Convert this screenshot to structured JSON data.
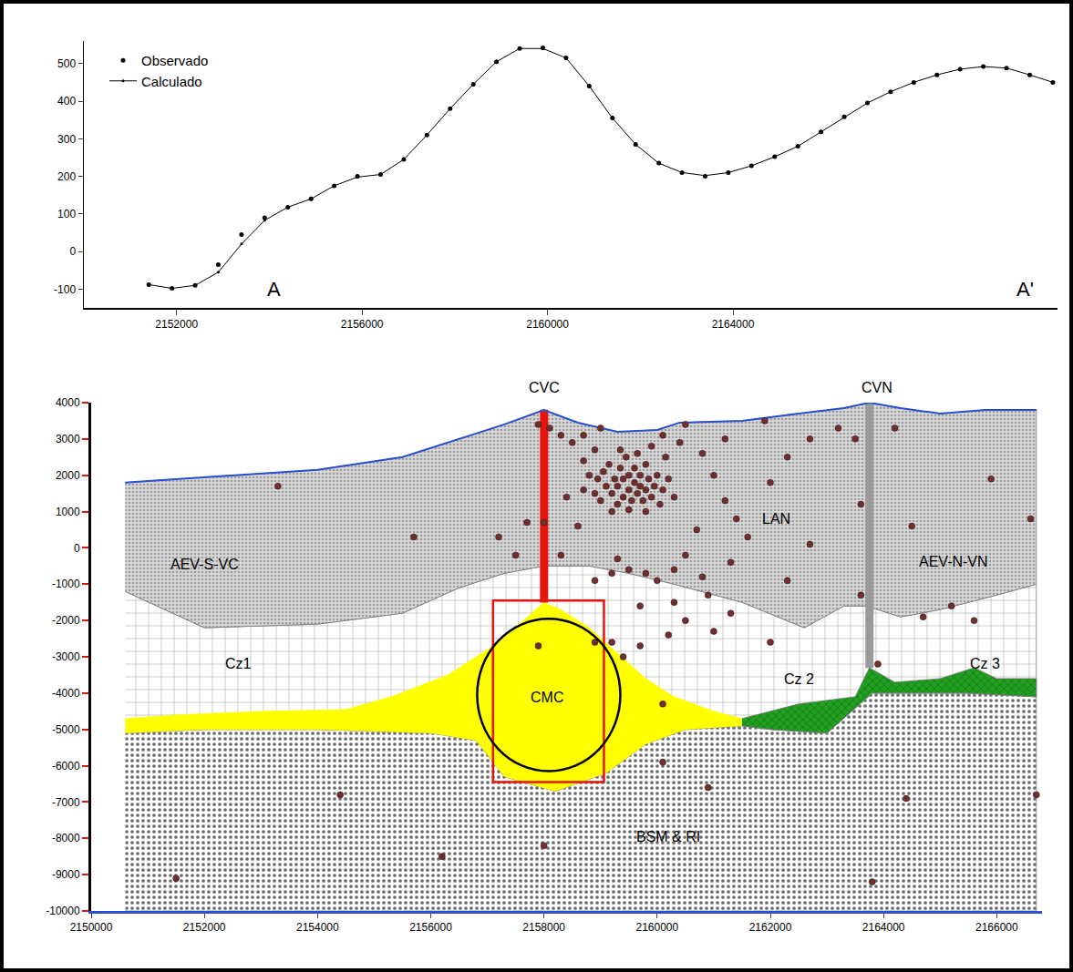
{
  "chart_data": [
    {
      "type": "line",
      "x": [
        2151400,
        2151900,
        2152400,
        2152900,
        2153400,
        2153900,
        2154400,
        2154900,
        2155400,
        2155900,
        2156400,
        2156900,
        2157400,
        2157900,
        2158400,
        2158900,
        2159400,
        2159900,
        2160400,
        2160900,
        2161400,
        2161900,
        2162400,
        2162900,
        2163400,
        2163900,
        2164400,
        2164900,
        2165400,
        2165900,
        2166400,
        2166900,
        2167400,
        2167900,
        2168400,
        2168900,
        2169400,
        2169900,
        2170400,
        2170900
      ],
      "series": [
        {
          "name": "Observado",
          "color": "#000000",
          "marker": "circle",
          "line_style": "none",
          "values": [
            -88,
            -98,
            -90,
            -35,
            45,
            90,
            118,
            140,
            175,
            200,
            205,
            245,
            310,
            380,
            445,
            505,
            540,
            542,
            515,
            440,
            355,
            285,
            235,
            210,
            200,
            210,
            228,
            252,
            280,
            318,
            358,
            395,
            425,
            450,
            470,
            485,
            492,
            488,
            470,
            450
          ]
        },
        {
          "name": "Calculado",
          "color": "#000000",
          "marker": "circle",
          "line_style": "solid",
          "values": [
            -88,
            -98,
            -90,
            -55,
            20,
            83,
            118,
            140,
            175,
            198,
            205,
            245,
            310,
            380,
            445,
            505,
            540,
            540,
            515,
            440,
            355,
            285,
            235,
            210,
            202,
            210,
            228,
            252,
            280,
            318,
            358,
            395,
            425,
            450,
            470,
            485,
            492,
            488,
            470,
            450
          ]
        }
      ],
      "xlim": [
        2150000,
        2171000
      ],
      "ylim": [
        -150,
        560
      ],
      "xticks": [
        2152000,
        2156000,
        2160000,
        2164000
      ],
      "yticks": [
        -100,
        0,
        100,
        200,
        300,
        400,
        500
      ],
      "grid": false,
      "legend": "upper left",
      "annotations": [
        {
          "text": "A",
          "x": 2154100,
          "y": -100
        },
        {
          "text": "A'",
          "x": 2170300,
          "y": -100
        }
      ]
    },
    {
      "type": "section",
      "series": [
        {
          "type": "area",
          "color": "#ffffff",
          "x": [
            2150600,
            2152000,
            2154000,
            2156000,
            2156800,
            2157300,
            2158200,
            2159100,
            2159800,
            2160500,
            2161500,
            2162000,
            2163000,
            2163800,
            2164500,
            2165500,
            2166700,
            2166700,
            2150600
          ],
          "values": [
            -5100,
            -5000,
            -5000,
            -5100,
            -5300,
            -6300,
            -6700,
            -6200,
            -5400,
            -5000,
            -4900,
            -5000,
            -5100,
            -4000,
            -4000,
            -4000,
            -4100,
            -10000,
            -10000
          ]
        },
        {
          "type": "area",
          "color": "#ffffff",
          "x": [
            2150600,
            2152000,
            2154000,
            2155500,
            2156500,
            2157300,
            2158000,
            2158800,
            2159500,
            2160300,
            2161500,
            2162600,
            2163300,
            2163700,
            2164300,
            2165000,
            2166000,
            2166700,
            2166700,
            2165500,
            2164500,
            2163800,
            2163000,
            2162000,
            2161500,
            2160500,
            2159800,
            2159100,
            2158200,
            2157300,
            2156800,
            2156000,
            2154000,
            2152000,
            2150600
          ],
          "values": [
            -1200,
            -2200,
            -2100,
            -1800,
            -1100,
            -700,
            -500,
            -500,
            -700,
            -1000,
            -1500,
            -2200,
            -1600,
            -1600,
            -1900,
            -1700,
            -1300,
            -1000,
            -4100,
            -4000,
            -4000,
            -4000,
            -5100,
            -5000,
            -4900,
            -5000,
            -5400,
            -6200,
            -6700,
            -6300,
            -5300,
            -5100,
            -5000,
            -5000,
            -5100
          ]
        },
        {
          "type": "area",
          "color": "#d9d9d9",
          "x": [
            2150600,
            2152000,
            2154000,
            2155500,
            2156500,
            2157300,
            2158000,
            2158600,
            2159300,
            2160000,
            2160400,
            2161500,
            2162500,
            2163300,
            2163750,
            2164300,
            2165000,
            2165800,
            2166700,
            2166700,
            2166000,
            2165000,
            2164300,
            2163700,
            2163300,
            2162600,
            2161500,
            2160300,
            2159500,
            2158800,
            2158000,
            2157300,
            2156500,
            2155500,
            2154000,
            2152000,
            2150600
          ],
          "values": [
            1800,
            1950,
            2150,
            2500,
            3000,
            3400,
            3800,
            3450,
            3200,
            3250,
            3450,
            3500,
            3700,
            3850,
            4000,
            3850,
            3700,
            3800,
            3800,
            -1000,
            -1300,
            -1700,
            -1900,
            -1600,
            -1600,
            -2200,
            -1500,
            -1000,
            -700,
            -500,
            -500,
            -700,
            -1100,
            -1800,
            -2100,
            -2200,
            -1200
          ]
        },
        {
          "type": "area",
          "color": "#ffff00",
          "x": [
            2150600,
            2151500,
            2153000,
            2154500,
            2155300,
            2156300,
            2157200,
            2157700,
            2158000,
            2158300,
            2158800,
            2159300,
            2159800,
            2160300,
            2161000,
            2161500,
            2161500,
            2160500,
            2159800,
            2159100,
            2158200,
            2157300,
            2156800,
            2156000,
            2154000,
            2152000,
            2150600
          ],
          "values": [
            -4700,
            -4600,
            -4500,
            -4450,
            -4100,
            -3500,
            -2600,
            -1900,
            -1500,
            -1700,
            -2200,
            -2900,
            -3600,
            -4100,
            -4500,
            -4700,
            -4900,
            -5000,
            -5400,
            -6200,
            -6700,
            -6300,
            -5300,
            -5100,
            -5000,
            -5000,
            -5100
          ]
        },
        {
          "type": "area",
          "color": "#22a022",
          "x": [
            2161500,
            2162500,
            2163500,
            2163750,
            2164200,
            2165000,
            2165600,
            2166000,
            2166700,
            2166700,
            2165500,
            2164500,
            2163800,
            2163000,
            2162000,
            2161500
          ],
          "values": [
            -4700,
            -4300,
            -4100,
            -3300,
            -3700,
            -3600,
            -3300,
            -3600,
            -3600,
            -4100,
            -4000,
            -4000,
            -4000,
            -5100,
            -5000,
            -4900
          ]
        },
        {
          "type": "area",
          "color": "#e8140c",
          "x": [
            2157930,
            2158070,
            2158070,
            2157930
          ],
          "values": [
            3800,
            3800,
            -1500,
            -1500
          ]
        },
        {
          "type": "area",
          "color": "#9a9a9a",
          "x": [
            2163680,
            2163820,
            2163820,
            2163680
          ],
          "values": [
            4000,
            4000,
            -3300,
            -3300
          ]
        },
        {
          "type": "line",
          "color": "#2a4fd0",
          "line_style": "solid",
          "x": [
            2150600,
            2152000,
            2154000,
            2155500,
            2156500,
            2157300,
            2158000,
            2158600,
            2159300,
            2160000,
            2160400,
            2161500,
            2162500,
            2163300,
            2163750,
            2164300,
            2165000,
            2165800,
            2166700
          ],
          "values": [
            1800,
            1950,
            2150,
            2500,
            3000,
            3400,
            3800,
            3450,
            3200,
            3250,
            3450,
            3500,
            3700,
            3850,
            4000,
            3850,
            3700,
            3800,
            3800
          ]
        },
        {
          "type": "scatter",
          "color": "#6e2f2f",
          "marker": "circle",
          "x": [
            2158900,
            2158950,
            2159000,
            2159050,
            2159100,
            2159150,
            2159200,
            2159250,
            2159300,
            2159300,
            2159350,
            2159400,
            2159400,
            2159450,
            2159500,
            2159500,
            2159550,
            2159600,
            2159600,
            2159650,
            2159700,
            2159700,
            2159750,
            2159800,
            2159800,
            2159850,
            2159900,
            2159950,
            2160000,
            2160050,
            2160100,
            2159200,
            2159500,
            2159800,
            2160200,
            2160300,
            2158800,
            2158700,
            2160150,
            2159350,
            2159650,
            2159900,
            2160400,
            2160100,
            2159000,
            2158900,
            2158700,
            2160500,
            2160800,
            2161000,
            2161200,
            2161400,
            2161600,
            2160700,
            2160500,
            2160300,
            2159800,
            2159500,
            2159200,
            2160000,
            2160800,
            2161300,
            2162000,
            2162300,
            2162700,
            2163200,
            2161900,
            2161200,
            2160900,
            2161300,
            2161000,
            2160500,
            2160200,
            2159700,
            2159400,
            2159200,
            2159700,
            2160300,
            2162300,
            2162700,
            2163500,
            2163600,
            2163600,
            2163900,
            2164200,
            2164500,
            2164700,
            2165200,
            2165600,
            2165900,
            2166600,
            2162000,
            2157200,
            2157700,
            2158000,
            2157500,
            2158100,
            2158300,
            2158500,
            2157900,
            2158700,
            2158400,
            2158600,
            2158300,
            2157900,
            2158900,
            2158900,
            2159300,
            2160100,
            2160100,
            2160900,
            2158000,
            2156200,
            2154400,
            2151500,
            2163800,
            2164400,
            2166700,
            2153300,
            2155700
          ],
          "values": [
            1500,
            1900,
            1300,
            2100,
            1700,
            2300,
            1500,
            1900,
            1200,
            1700,
            2200,
            1400,
            1900,
            2500,
            1600,
            2000,
            1300,
            1800,
            2200,
            1500,
            1700,
            2000,
            1300,
            1600,
            2300,
            1900,
            1400,
            1700,
            2000,
            1200,
            1600,
            1000,
            1050,
            1000,
            1900,
            1400,
            2000,
            1600,
            2500,
            2700,
            2600,
            2800,
            2900,
            3100,
            3300,
            2700,
            3100,
            3400,
            2600,
            2000,
            1300,
            800,
            300,
            500,
            -200,
            -600,
            -700,
            -600,
            -700,
            -900,
            -800,
            -400,
            1800,
            2500,
            3000,
            3300,
            3500,
            3000,
            -1300,
            -1800,
            -2300,
            -2000,
            -2400,
            -2700,
            -3000,
            -2600,
            -1600,
            -1500,
            -900,
            100,
            3000,
            1200,
            -1300,
            -3200,
            3300,
            600,
            -1900,
            -1600,
            -2000,
            1900,
            800,
            -2600,
            300,
            700,
            700,
            -200,
            3300,
            3100,
            2900,
            3400,
            2400,
            1400,
            600,
            -200,
            -2700,
            -2600,
            -900,
            -300,
            -4300,
            -5900,
            -6600,
            -8200,
            -8500,
            -6800,
            -9100,
            -9200,
            -6900,
            -6800,
            1700,
            300
          ]
        }
      ],
      "shapes": [
        {
          "type": "rect",
          "color": "#e8140c",
          "x": [
            2157100,
            2159060
          ],
          "y": [
            -6450,
            -1450
          ]
        },
        {
          "type": "circle",
          "color": "#000000",
          "x": [
            2156820,
            2159350
          ],
          "y": [
            -6150,
            -1950
          ]
        }
      ],
      "xlim": [
        2150000,
        2166800
      ],
      "ylim": [
        -10000,
        4000
      ],
      "xticks": [
        2150000,
        2152000,
        2154000,
        2156000,
        2158000,
        2160000,
        2162000,
        2164000,
        2166000
      ],
      "yticks": [
        -10000,
        -9000,
        -8000,
        -7000,
        -6000,
        -5000,
        -4000,
        -3000,
        -2000,
        -1000,
        0,
        1000,
        2000,
        3000,
        4000
      ],
      "grid": false,
      "annotations": [
        {
          "text": "CVC",
          "x": 2158000,
          "y": 4000
        },
        {
          "text": "CVN",
          "x": 2163890,
          "y": 4000
        },
        {
          "text": "AEV-S-VC",
          "x": 2152000,
          "y": -450
        },
        {
          "text": "LAN",
          "x": 2162110,
          "y": 800
        },
        {
          "text": "AEV-N-VN",
          "x": 2165240,
          "y": -375
        },
        {
          "text": "Cz1",
          "x": 2152600,
          "y": -3200
        },
        {
          "text": "Cz 2",
          "x": 2162510,
          "y": -3625
        },
        {
          "text": "Cz 3",
          "x": 2165800,
          "y": -3200
        },
        {
          "text": "CMC",
          "x": 2158050,
          "y": -4125
        },
        {
          "text": "BSM & RI",
          "x": 2160190,
          "y": -7950
        }
      ]
    }
  ]
}
